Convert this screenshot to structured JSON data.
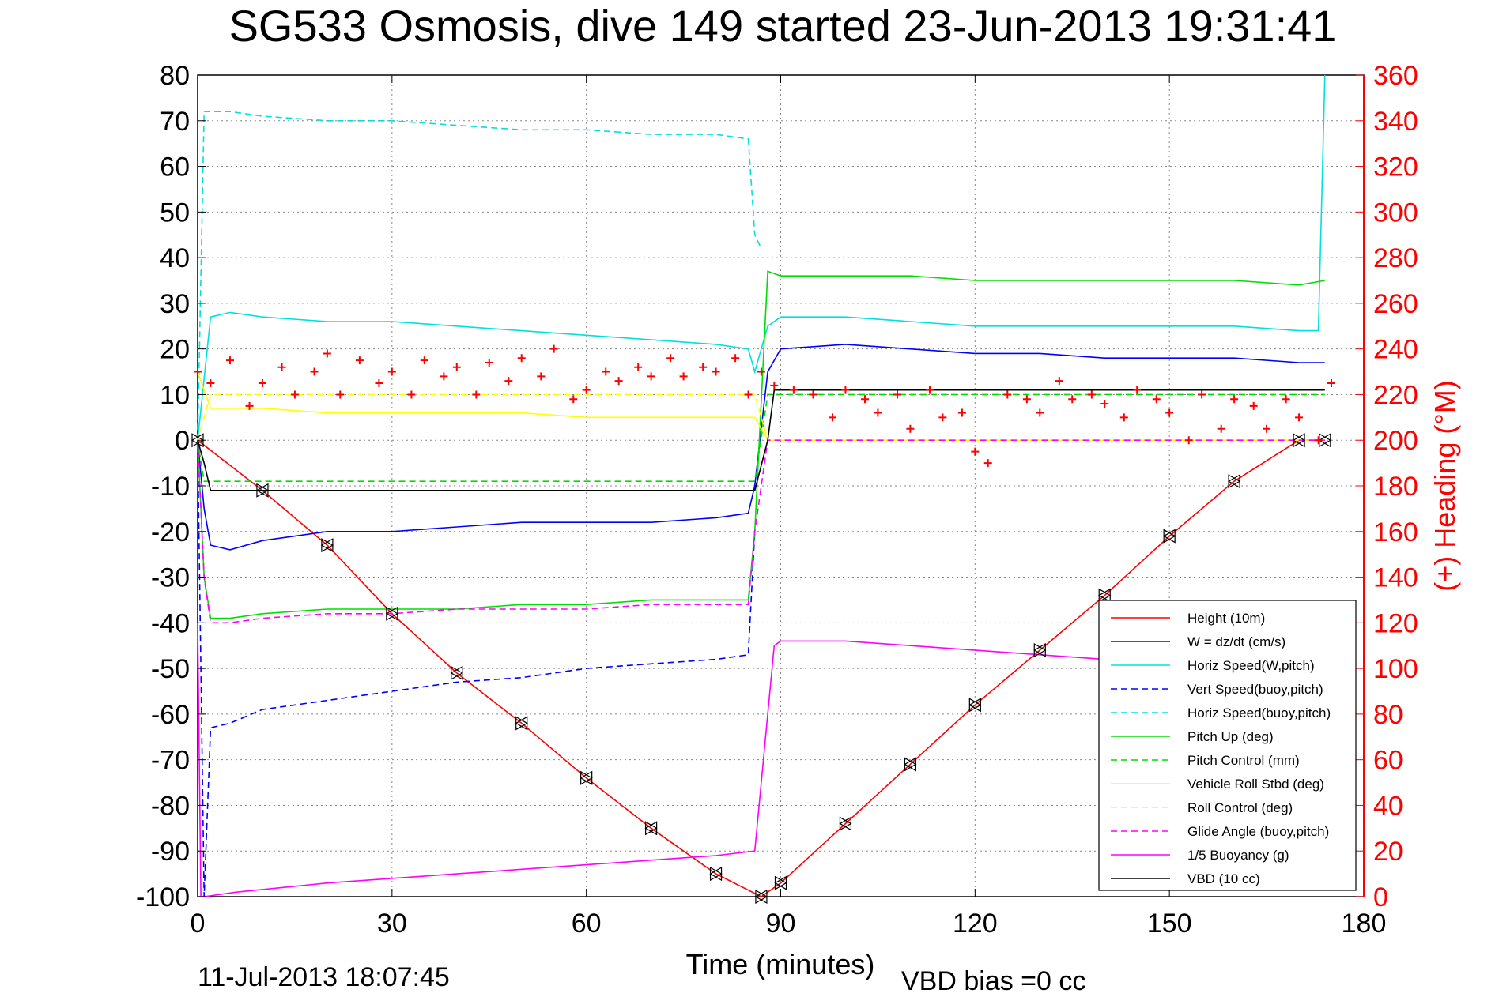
{
  "chart_data": {
    "type": "line",
    "title": "SG533 Osmosis, dive 149 started 23-Jun-2013 19:31:41",
    "xlabel": "Time (minutes)",
    "ylabel_right": "(+) Heading (°M)",
    "footer_left": "11-Jul-2013 18:07:45",
    "footer_right": "VBD bias =0 cc",
    "xlim": [
      0,
      180
    ],
    "ylim": [
      -100,
      80
    ],
    "ylim_right": [
      0,
      360
    ],
    "xticks": [
      0,
      30,
      60,
      90,
      120,
      150,
      180
    ],
    "yticks": [
      -100,
      -90,
      -80,
      -70,
      -60,
      -50,
      -40,
      -30,
      -20,
      -10,
      0,
      10,
      20,
      30,
      40,
      50,
      60,
      70,
      80
    ],
    "yticks_right": [
      0,
      20,
      40,
      60,
      80,
      100,
      120,
      140,
      160,
      180,
      200,
      220,
      240,
      260,
      280,
      300,
      320,
      340,
      360
    ],
    "grid": true,
    "legend_position": "lower-right",
    "colors": {
      "left_axis": "#000000",
      "right_axis": "#ff0000"
    },
    "series": [
      {
        "name": "Height (10m)",
        "color": "#ff0000",
        "style": "solid",
        "markers": "triangles",
        "x": [
          0,
          10,
          20,
          30,
          40,
          50,
          60,
          70,
          80,
          87,
          90,
          100,
          110,
          120,
          130,
          140,
          150,
          160,
          170,
          174
        ],
        "y": [
          0,
          -11,
          -23,
          -38,
          -51,
          -62,
          -74,
          -85,
          -95,
          -100,
          -97,
          -84,
          -71,
          -58,
          -46,
          -34,
          -21,
          -9,
          0,
          0
        ]
      },
      {
        "name": "W = dz/dt (cm/s)",
        "color": "#0000ff",
        "style": "solid",
        "x": [
          0,
          1,
          2,
          5,
          10,
          20,
          30,
          40,
          50,
          60,
          70,
          80,
          85,
          86,
          88,
          90,
          100,
          110,
          120,
          130,
          140,
          150,
          160,
          170,
          174
        ],
        "y": [
          0,
          -15,
          -23,
          -24,
          -22,
          -20,
          -20,
          -19,
          -18,
          -18,
          -18,
          -17,
          -16,
          -10,
          15,
          20,
          21,
          20,
          19,
          19,
          18,
          18,
          18,
          17,
          17
        ]
      },
      {
        "name": "Horiz Speed(W,pitch)",
        "color": "#00e0e0",
        "style": "solid",
        "x": [
          0,
          2,
          5,
          10,
          20,
          30,
          40,
          50,
          60,
          70,
          80,
          85,
          86,
          88,
          90,
          100,
          110,
          120,
          130,
          140,
          150,
          160,
          170,
          173,
          174
        ],
        "y": [
          0,
          27,
          28,
          27,
          26,
          26,
          25,
          24,
          23,
          22,
          21,
          20,
          15,
          25,
          27,
          27,
          26,
          25,
          25,
          25,
          25,
          25,
          24,
          24,
          80
        ]
      },
      {
        "name": "Vert Speed(buoy,pitch)",
        "color": "#0000ff",
        "style": "dashed",
        "x": [
          0,
          1,
          2,
          5,
          10,
          20,
          30,
          40,
          50,
          60,
          70,
          80,
          85,
          86
        ],
        "y": [
          0,
          -100,
          -63,
          -62,
          -59,
          -57,
          -55,
          -53,
          -52,
          -50,
          -49,
          -48,
          -47,
          -20
        ]
      },
      {
        "name": "Horiz Speed(buoy,pitch)",
        "color": "#00e0e0",
        "style": "dashed",
        "x": [
          0,
          1,
          2,
          5,
          10,
          20,
          30,
          40,
          50,
          60,
          70,
          80,
          85,
          86,
          87
        ],
        "y": [
          0,
          72,
          72,
          72,
          71,
          70,
          70,
          69,
          68,
          68,
          67,
          67,
          66,
          45,
          42
        ]
      },
      {
        "name": "Pitch Up (deg)",
        "color": "#00dd00",
        "style": "solid",
        "x": [
          0,
          1,
          2,
          5,
          10,
          20,
          30,
          40,
          50,
          60,
          70,
          80,
          85,
          86,
          88,
          90,
          100,
          110,
          120,
          130,
          140,
          150,
          160,
          170,
          174
        ],
        "y": [
          0,
          -30,
          -39,
          -39,
          -38,
          -37,
          -37,
          -37,
          -36,
          -36,
          -35,
          -35,
          -35,
          -20,
          37,
          36,
          36,
          36,
          35,
          35,
          35,
          35,
          35,
          34,
          35
        ]
      },
      {
        "name": "Pitch Control (mm)",
        "color": "#00dd00",
        "style": "dashed",
        "x": [
          0,
          1,
          2,
          10,
          20,
          30,
          40,
          50,
          60,
          70,
          80,
          85,
          86,
          88,
          174
        ],
        "y": [
          0,
          -9,
          -9,
          -9,
          -9,
          -9,
          -9,
          -9,
          -9,
          -9,
          -9,
          -9,
          -9,
          10,
          10
        ]
      },
      {
        "name": "Vehicle Roll Stbd (deg)",
        "color": "#ffff00",
        "style": "solid",
        "x": [
          0,
          2,
          10,
          20,
          30,
          40,
          50,
          60,
          70,
          80,
          86,
          88,
          90,
          100,
          110,
          120,
          130,
          140,
          150,
          160,
          170,
          174
        ],
        "y": [
          15,
          7,
          7,
          6,
          6,
          6,
          6,
          5,
          5,
          5,
          5,
          0,
          0,
          0,
          0,
          0,
          0,
          0,
          0,
          0,
          0,
          0
        ]
      },
      {
        "name": "Roll Control (deg)",
        "color": "#ffff00",
        "style": "dashed",
        "x": [
          0,
          2,
          10,
          20,
          30,
          40,
          50,
          60,
          70,
          80,
          86,
          88,
          90,
          174
        ],
        "y": [
          0,
          10,
          10,
          10,
          10,
          10,
          10,
          10,
          10,
          10,
          10,
          0,
          0,
          0
        ]
      },
      {
        "name": "Glide Angle (buoy,pitch)",
        "color": "#ff00ff",
        "style": "dashed",
        "x": [
          0,
          1,
          2,
          5,
          10,
          20,
          30,
          40,
          50,
          60,
          70,
          80,
          85,
          86,
          88,
          90,
          174
        ],
        "y": [
          0,
          -30,
          -40,
          -40,
          -39,
          -38,
          -38,
          -37,
          -37,
          -37,
          -36,
          -36,
          -36,
          -20,
          0,
          0,
          0
        ]
      },
      {
        "name": "1/5 Buoyancy (g)",
        "color": "#ff00ff",
        "style": "solid",
        "x": [
          0,
          0.5,
          1,
          6,
          20,
          40,
          60,
          80,
          86,
          89,
          90,
          100,
          110,
          130,
          150
        ],
        "y": [
          -40,
          -100,
          -100,
          -99,
          -97,
          -95,
          -93,
          -91,
          -90,
          -45,
          -44,
          -44,
          -45,
          -47,
          -49
        ]
      },
      {
        "name": "VBD (10 cc)",
        "color": "#000000",
        "style": "solid",
        "x": [
          0,
          1,
          2,
          10,
          20,
          40,
          60,
          80,
          86,
          88,
          89,
          120,
          150,
          174
        ],
        "y": [
          0,
          -5,
          -11,
          -11,
          -11,
          -11,
          -11,
          -11,
          -11,
          0,
          11,
          11,
          11,
          11
        ]
      },
      {
        "name": "Heading",
        "color": "#ff0000",
        "style": "markers",
        "axis": "right",
        "x": [
          0,
          2,
          5,
          8,
          10,
          13,
          15,
          18,
          20,
          22,
          25,
          28,
          30,
          33,
          35,
          38,
          40,
          43,
          45,
          48,
          50,
          53,
          55,
          58,
          60,
          63,
          65,
          68,
          70,
          73,
          75,
          78,
          80,
          83,
          85,
          87,
          89,
          92,
          95,
          98,
          100,
          103,
          105,
          108,
          110,
          113,
          115,
          118,
          120,
          122,
          125,
          128,
          130,
          133,
          135,
          138,
          140,
          143,
          145,
          148,
          150,
          153,
          155,
          158,
          160,
          163,
          165,
          168,
          170,
          173,
          175
        ],
        "y": [
          230,
          225,
          235,
          215,
          225,
          232,
          220,
          230,
          238,
          220,
          235,
          225,
          230,
          220,
          235,
          228,
          232,
          220,
          234,
          226,
          236,
          228,
          240,
          218,
          222,
          230,
          226,
          232,
          228,
          236,
          228,
          232,
          230,
          236,
          220,
          230,
          224,
          222,
          220,
          210,
          222,
          218,
          212,
          220,
          205,
          222,
          210,
          212,
          195,
          190,
          220,
          218,
          212,
          226,
          218,
          220,
          216,
          210,
          222,
          218,
          212,
          200,
          220,
          205,
          218,
          215,
          205,
          218,
          210,
          200,
          225
        ]
      }
    ]
  }
}
